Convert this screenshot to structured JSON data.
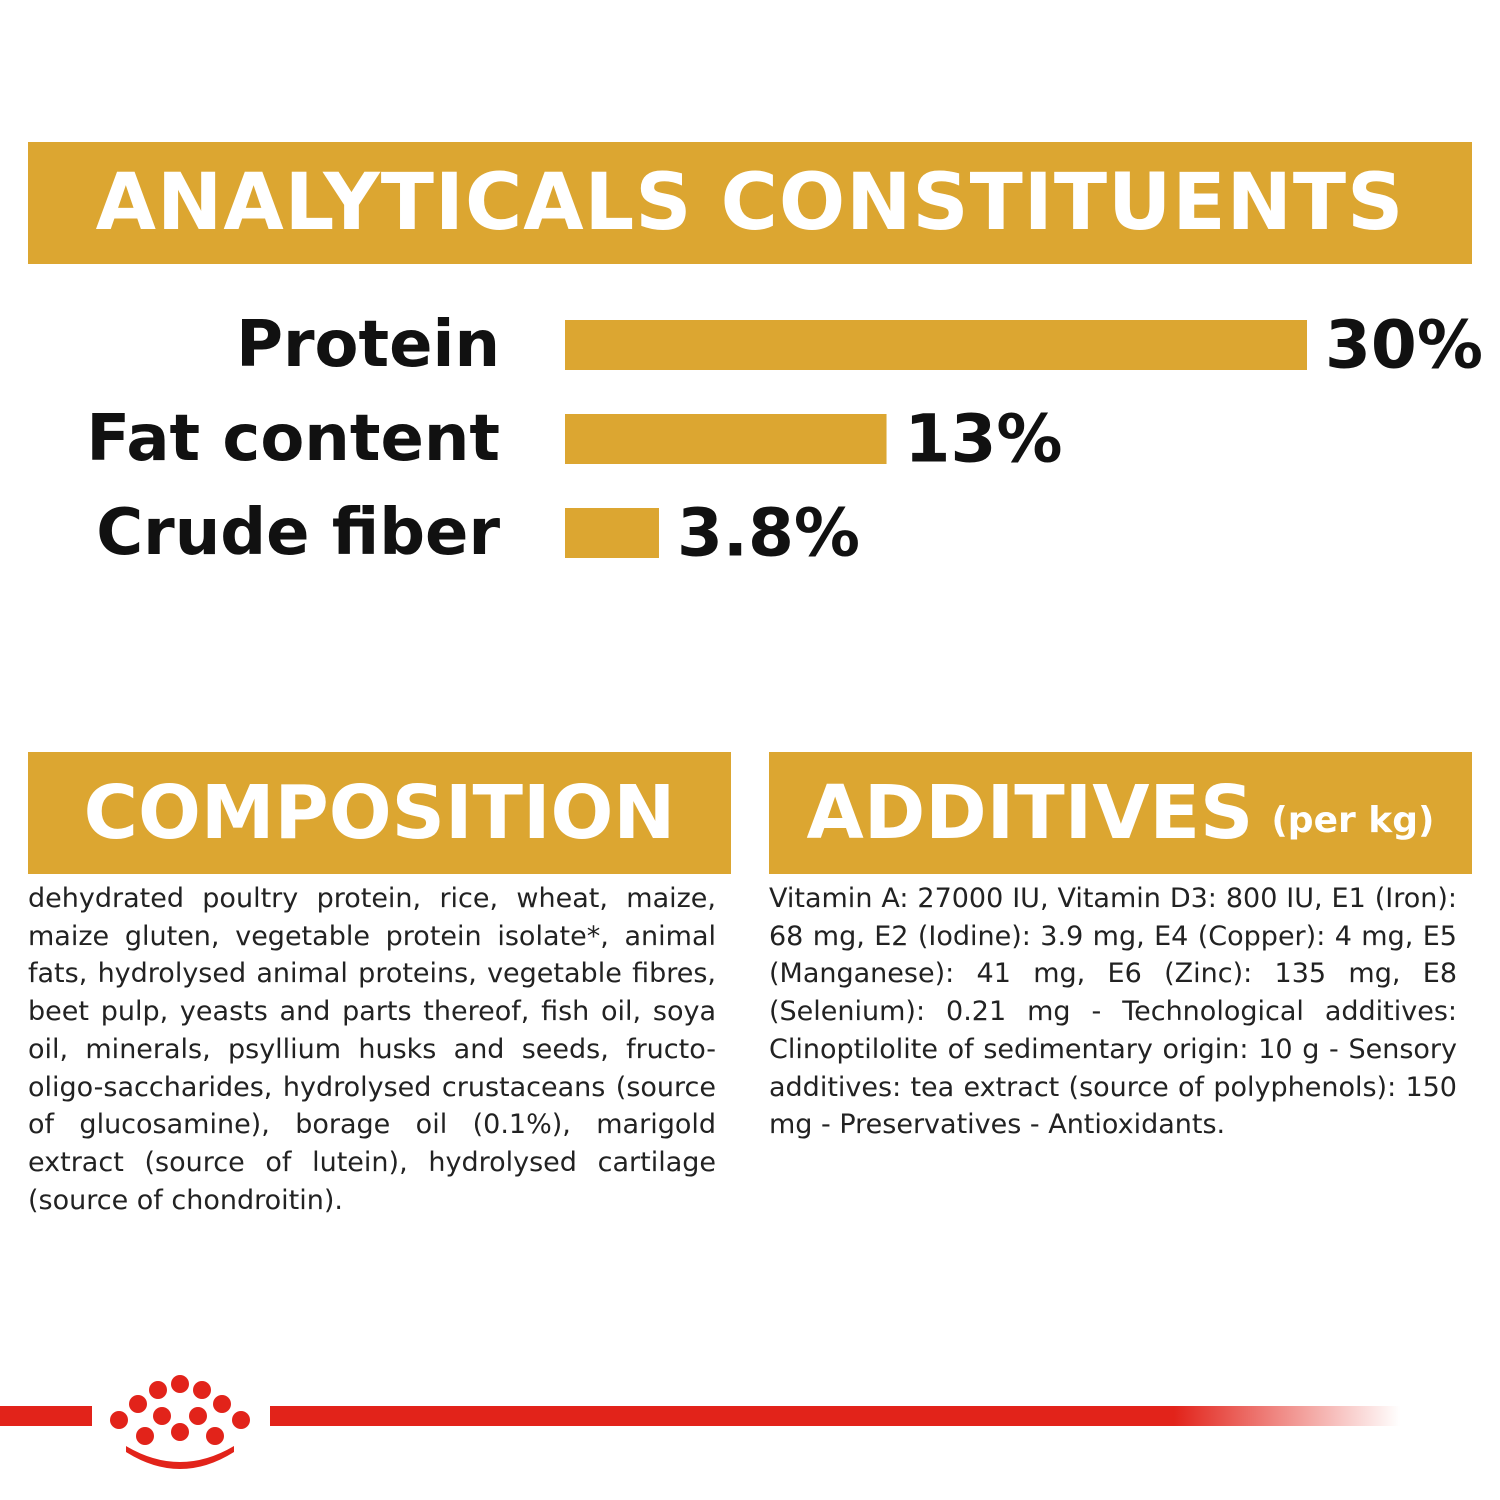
{
  "analytics": {
    "heading": "ANALYTICALS CONSTITUENTS"
  },
  "composition": {
    "heading": "COMPOSITION",
    "text": "dehydrated poultry protein, rice, wheat, maize, maize gluten, vegetable protein isolate*, animal fats, hydrolysed animal proteins, vegetable fibres, beet pulp, yeasts and parts thereof, fish oil, soya oil, minerals, psyllium husks and seeds, fructo-oligo-saccharides, hydrolysed crustaceans (source of glucosamine), borage oil (0.1%), marigold extract (source of lutein), hydrolysed cartilage (source of chondroitin)."
  },
  "additives": {
    "heading": "ADDITIVES",
    "heading_suffix": "(per kg)",
    "text": "Vitamin A: 27000 IU, Vitamin D3: 800 IU, E1 (Iron): 68 mg, E2 (Iodine): 3.9 mg, E4 (Copper): 4 mg, E5 (Manganese): 41 mg, E6 (Zinc): 135 mg, E8 (Selenium): 0.21 mg - Technological additives: Clinoptilolite of sedimentary origin: 10 g - Sensory additives: tea extract (source of polyphenols): 150 mg - Preservatives - Antioxidants."
  },
  "colors": {
    "accent": "#dca631",
    "brand_red": "#e2231a",
    "text": "#111111"
  },
  "logo": {
    "icon": "royal-canin-crown-icon"
  },
  "chart_data": {
    "type": "bar",
    "orientation": "horizontal",
    "categories": [
      "Protein",
      "Fat content",
      "Crude fiber"
    ],
    "values": [
      30,
      13,
      3.8
    ],
    "value_labels": [
      "30%",
      "13%",
      "3.8%"
    ],
    "grid": false,
    "legend": "none"
  }
}
